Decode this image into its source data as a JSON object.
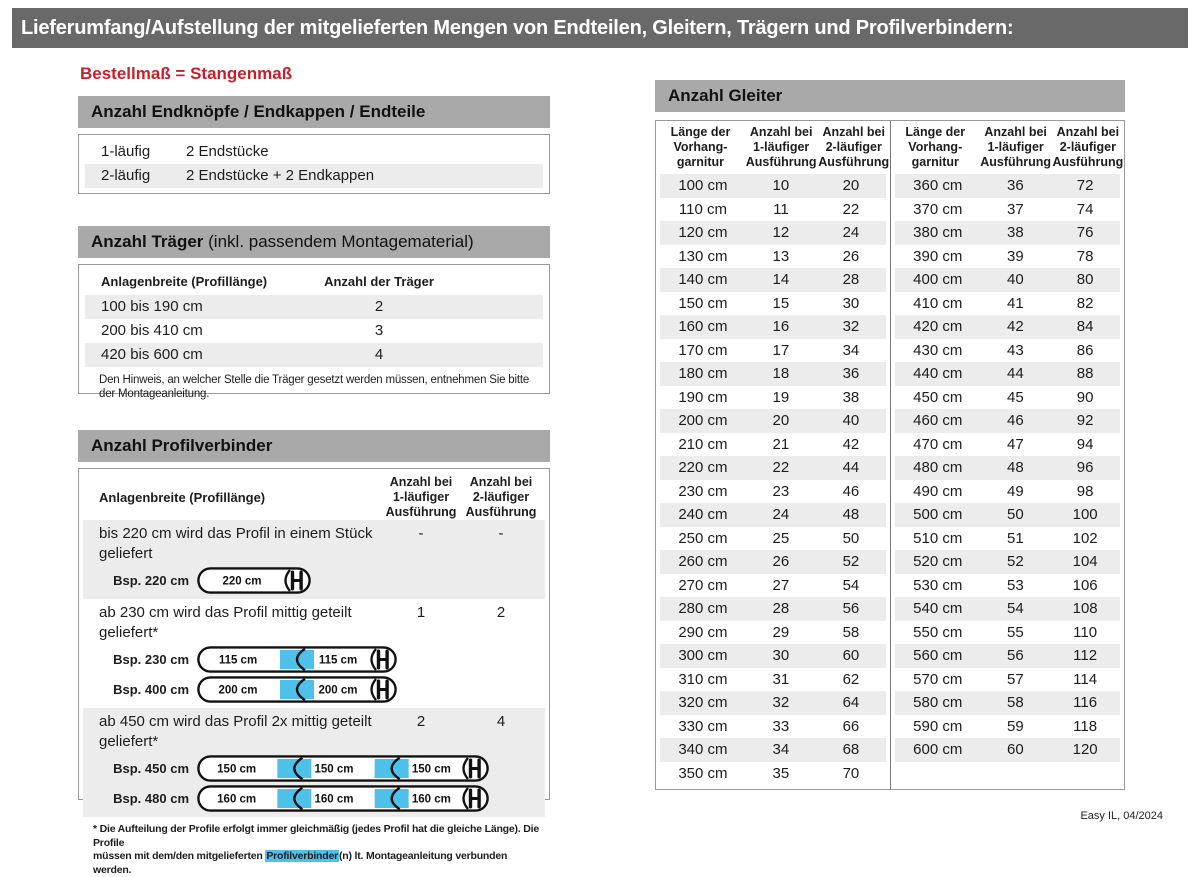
{
  "page": {
    "title": "Lieferumfang/Aufstellung der mitgelieferten Mengen von Endteilen, Gleitern, Trägern und Profilverbindern:",
    "order_note": "Bestellmaß = Stangenmaß",
    "footer": "Easy IL, 04/2024"
  },
  "colors": {
    "accent_red": "#c8202a",
    "highlight_blue": "#4ec1ea",
    "header_bar_dark": "#696969",
    "section_bar_gray": "#a9a9a9",
    "row_stripe_gray": "#ececec"
  },
  "endteile": {
    "title": "Anzahl Endknöpfe / Endkappen / Endteile",
    "rows": [
      {
        "label": "1-läufig",
        "value": "2 Endstücke"
      },
      {
        "label": "2-läufig",
        "value": "2 Endstücke + 2 Endkappen"
      }
    ]
  },
  "traeger": {
    "title_bold": "Anzahl Träger",
    "title_rest": " (inkl. passendem Montagematerial)",
    "col1": "Anlagenbreite (Profillänge)",
    "col2": "Anzahl der Träger",
    "rows": [
      {
        "range": "100 bis 190 cm",
        "count": "2"
      },
      {
        "range": "200 bis 410 cm",
        "count": "3"
      },
      {
        "range": "420 bis 600 cm",
        "count": "4"
      }
    ],
    "note_line1": "Den Hinweis, an welcher Stelle die Träger gesetzt werden müssen, entnehmen Sie bitte",
    "note_line2": "der Montageanleitung."
  },
  "profilverbinder": {
    "title": "Anzahl Profilverbinder",
    "col_label": "Anlagenbreite (Profillänge)",
    "col_1laeufig": [
      "Anzahl bei",
      "1-läufiger",
      "Ausführung"
    ],
    "col_2laeufig": [
      "Anzahl bei",
      "2-läufiger",
      "Ausführung"
    ],
    "sections": [
      {
        "text": "bis 220 cm wird das Profil in einem Stück geliefert",
        "v1": "-",
        "v2": "-",
        "shaded": true,
        "examples": [
          {
            "label": "Bsp. 220 cm",
            "segments": [
              "220 cm"
            ]
          }
        ]
      },
      {
        "text": "ab 230 cm wird das Profil mittig geteilt geliefert*",
        "v1": "1",
        "v2": "2",
        "shaded": false,
        "examples": [
          {
            "label": "Bsp. 230 cm",
            "segments": [
              "115 cm",
              "115 cm"
            ]
          },
          {
            "label": "Bsp. 400 cm",
            "segments": [
              "200 cm",
              "200 cm"
            ]
          }
        ]
      },
      {
        "text": "ab 450 cm wird das Profil 2x mittig geteilt geliefert*",
        "v1": "2",
        "v2": "4",
        "shaded": true,
        "examples": [
          {
            "label": "Bsp. 450 cm",
            "segments": [
              "150 cm",
              "150 cm",
              "150 cm"
            ]
          },
          {
            "label": "Bsp. 480 cm",
            "segments": [
              "160 cm",
              "160 cm",
              "160 cm"
            ]
          }
        ]
      }
    ],
    "footnote": {
      "line1": "* Die Aufteilung der Profile erfolgt immer gleichmäßig (jedes Profil hat die gleiche Länge). Die Profile",
      "line2_pre": "müssen mit dem/den mitgelieferten ",
      "highlight": "Profilverbinder",
      "line2_post": "(n) lt. Montageanleitung verbunden werden."
    }
  },
  "gleiter": {
    "title": "Anzahl Gleiter",
    "headers": [
      [
        "Länge der",
        "Vorhang-",
        "garnitur"
      ],
      [
        "Anzahl bei",
        "1-läufiger",
        "Ausführung"
      ],
      [
        "Anzahl bei",
        "2-läufiger",
        "Ausführung"
      ]
    ],
    "groups": [
      {
        "rows": [
          [
            "100 cm",
            "10",
            "20"
          ],
          [
            "110 cm",
            "11",
            "22"
          ],
          [
            "120 cm",
            "12",
            "24"
          ],
          [
            "130 cm",
            "13",
            "26"
          ],
          [
            "140 cm",
            "14",
            "28"
          ],
          [
            "150 cm",
            "15",
            "30"
          ],
          [
            "160 cm",
            "16",
            "32"
          ],
          [
            "170 cm",
            "17",
            "34"
          ],
          [
            "180 cm",
            "18",
            "36"
          ],
          [
            "190 cm",
            "19",
            "38"
          ],
          [
            "200 cm",
            "20",
            "40"
          ],
          [
            "210 cm",
            "21",
            "42"
          ],
          [
            "220 cm",
            "22",
            "44"
          ],
          [
            "230 cm",
            "23",
            "46"
          ],
          [
            "240 cm",
            "24",
            "48"
          ],
          [
            "250 cm",
            "25",
            "50"
          ],
          [
            "260 cm",
            "26",
            "52"
          ],
          [
            "270 cm",
            "27",
            "54"
          ],
          [
            "280 cm",
            "28",
            "56"
          ],
          [
            "290 cm",
            "29",
            "58"
          ],
          [
            "300 cm",
            "30",
            "60"
          ],
          [
            "310 cm",
            "31",
            "62"
          ],
          [
            "320 cm",
            "32",
            "64"
          ],
          [
            "330 cm",
            "33",
            "66"
          ],
          [
            "340 cm",
            "34",
            "68"
          ],
          [
            "350 cm",
            "35",
            "70"
          ]
        ]
      },
      {
        "rows": [
          [
            "360 cm",
            "36",
            "72"
          ],
          [
            "370 cm",
            "37",
            "74"
          ],
          [
            "380 cm",
            "38",
            "76"
          ],
          [
            "390 cm",
            "39",
            "78"
          ],
          [
            "400 cm",
            "40",
            "80"
          ],
          [
            "410 cm",
            "41",
            "82"
          ],
          [
            "420 cm",
            "42",
            "84"
          ],
          [
            "430 cm",
            "43",
            "86"
          ],
          [
            "440 cm",
            "44",
            "88"
          ],
          [
            "450 cm",
            "45",
            "90"
          ],
          [
            "460 cm",
            "46",
            "92"
          ],
          [
            "470 cm",
            "47",
            "94"
          ],
          [
            "480 cm",
            "48",
            "96"
          ],
          [
            "490 cm",
            "49",
            "98"
          ],
          [
            "500 cm",
            "50",
            "100"
          ],
          [
            "510 cm",
            "51",
            "102"
          ],
          [
            "520 cm",
            "52",
            "104"
          ],
          [
            "530 cm",
            "53",
            "106"
          ],
          [
            "540 cm",
            "54",
            "108"
          ],
          [
            "550 cm",
            "55",
            "110"
          ],
          [
            "560 cm",
            "56",
            "112"
          ],
          [
            "570 cm",
            "57",
            "114"
          ],
          [
            "580 cm",
            "58",
            "116"
          ],
          [
            "590 cm",
            "59",
            "118"
          ],
          [
            "600 cm",
            "60",
            "120"
          ]
        ]
      }
    ]
  }
}
